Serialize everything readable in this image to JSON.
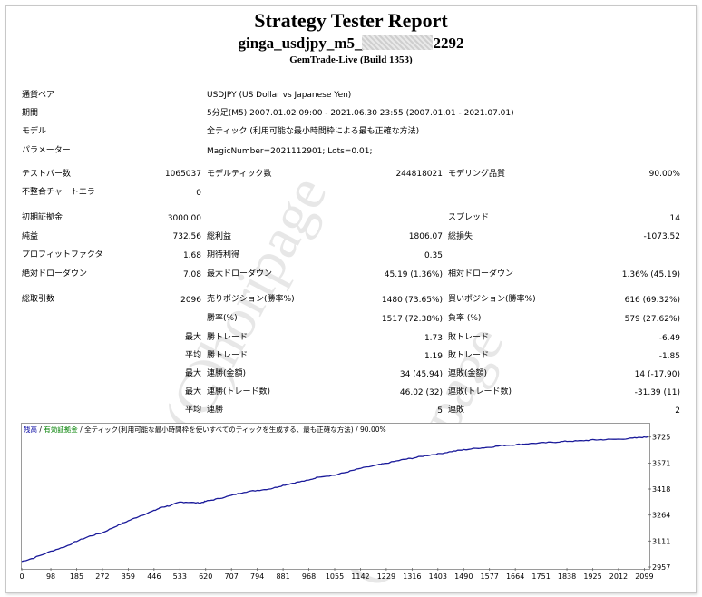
{
  "report": {
    "title": "Strategy Tester Report",
    "subtitle_left": "ginga_usdjpy_m5_",
    "subtitle_right": "2292",
    "build": "GemTrade-Live (Build 1353)"
  },
  "params": [
    {
      "label": "通貨ペア",
      "value": "USDJPY (US Dollar vs Japanese Yen)"
    },
    {
      "label": "期間",
      "value": "5分足(M5) 2007.01.02 09:00 - 2021.06.30 23:55 (2007.01.01 - 2021.07.01)"
    },
    {
      "label": "モデル",
      "value": "全ティック (利用可能な最小時間枠による最も正確な方法)"
    },
    {
      "label": "パラメーター",
      "value": "MagicNumber=2021112901; Lots=0.01;"
    }
  ],
  "stats": {
    "bars_label": "テストバー数",
    "bars": "1065037",
    "ticks_label": "モデルティック数",
    "ticks": "244818021",
    "quality_label": "モデリング品質",
    "quality": "90.00%",
    "mismatch_label": "不整合チャートエラー",
    "mismatch": "0",
    "deposit_label": "初期証拠金",
    "deposit": "3000.00",
    "spread_label": "スプレッド",
    "spread": "14",
    "net_label": "純益",
    "net": "732.56",
    "gross_profit_label": "総利益",
    "gross_profit": "1806.07",
    "gross_loss_label": "総損失",
    "gross_loss": "-1073.52",
    "pf_label": "プロフィットファクタ",
    "pf": "1.68",
    "expected_label": "期待利得",
    "expected": "0.35",
    "abs_dd_label": "絶対ドローダウン",
    "abs_dd": "7.08",
    "max_dd_label": "最大ドローダウン",
    "max_dd": "45.19 (1.36%)",
    "rel_dd_label": "相対ドローダウン",
    "rel_dd": "1.36% (45.19)",
    "total_trades_label": "総取引数",
    "total_trades": "2096",
    "short_label": "売りポジション(勝率%)",
    "short": "1480 (73.65%)",
    "long_label": "買いポジション(勝率%)",
    "long": "616 (69.32%)",
    "win_pct_label": "勝率(%)",
    "win_pct": "1517 (72.38%)",
    "loss_pct_label": "負率 (%)",
    "loss_pct": "579 (27.62%)",
    "max_word": "最大",
    "avg_word": "平均",
    "largest_win_label": "勝トレード",
    "largest_win": "1.73",
    "largest_loss_label": "敗トレード",
    "largest_loss": "-6.49",
    "avg_win_label": "勝トレード",
    "avg_win": "1.19",
    "avg_loss_label": "敗トレード",
    "avg_loss": "-1.85",
    "max_cons_win_amt_label": "連勝(金額)",
    "max_cons_win_amt": "34 (45.94)",
    "max_cons_loss_amt_label": "連敗(金額)",
    "max_cons_loss_amt": "14 (-17.90)",
    "max_cons_win_cnt_label": "連勝(トレード数)",
    "max_cons_win_cnt": "46.02 (32)",
    "max_cons_loss_cnt_label": "連敗(トレード数)",
    "max_cons_loss_cnt": "-31.39 (11)",
    "avg_cons_win_label": "連勝",
    "avg_cons_win": "5",
    "avg_cons_loss_label": "連敗",
    "avg_cons_loss": "2"
  },
  "chart_legend": {
    "balance": "残高",
    "sep1": " / ",
    "margin": "有効証拠金",
    "sep2": " / ",
    "model": "全ティック(利用可能な最小時間枠を使いすべてのティックを生成する、最も正確な方法)",
    "sep3": " / ",
    "quality": "90.00%",
    "colors": {
      "balance": "#0000a0",
      "margin": "#008000",
      "line": "#1a1a9a"
    }
  },
  "watermark": "(C)horipage",
  "chart_data": {
    "type": "line",
    "x_ticks": [
      "0",
      "98",
      "185",
      "272",
      "359",
      "446",
      "533",
      "620",
      "707",
      "794",
      "881",
      "968",
      "1055",
      "1142",
      "1229",
      "1316",
      "1403",
      "1490",
      "1577",
      "1664",
      "1751",
      "1838",
      "1925",
      "2012",
      "2099"
    ],
    "y_ticks": [
      "3725",
      "3571",
      "3418",
      "3264",
      "3111",
      "2957"
    ],
    "ylim": [
      2957,
      3745
    ],
    "xlim": [
      0,
      2110
    ],
    "series": [
      {
        "name": "残高",
        "x": [
          0,
          40,
          98,
          150,
          185,
          230,
          272,
          320,
          359,
          400,
          446,
          470,
          500,
          533,
          560,
          600,
          620,
          660,
          707,
          750,
          794,
          840,
          881,
          920,
          968,
          1000,
          1055,
          1100,
          1142,
          1200,
          1229,
          1280,
          1316,
          1360,
          1403,
          1450,
          1490,
          1540,
          1577,
          1620,
          1664,
          1700,
          1751,
          1800,
          1838,
          1880,
          1925,
          1960,
          2012,
          2060,
          2099,
          2110
        ],
        "y": [
          2990,
          3010,
          3050,
          3080,
          3110,
          3140,
          3160,
          3200,
          3230,
          3260,
          3290,
          3310,
          3320,
          3340,
          3340,
          3335,
          3345,
          3360,
          3380,
          3400,
          3410,
          3420,
          3440,
          3455,
          3470,
          3490,
          3500,
          3520,
          3540,
          3560,
          3570,
          3590,
          3600,
          3615,
          3625,
          3640,
          3650,
          3660,
          3665,
          3675,
          3680,
          3685,
          3690,
          3695,
          3700,
          3702,
          3708,
          3710,
          3712,
          3718,
          3725,
          3727
        ]
      }
    ]
  }
}
